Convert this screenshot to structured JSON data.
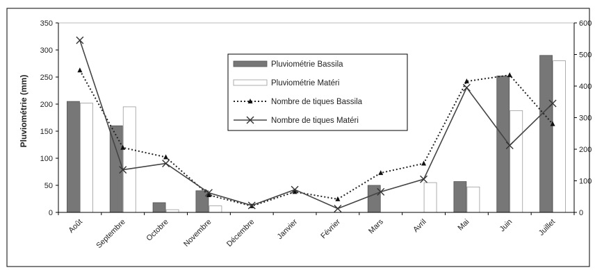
{
  "chart_data": {
    "type": "bar",
    "categories": [
      "Août",
      "Septembre",
      "Octobre",
      "Novembre",
      "Décembre",
      "Janvier",
      "Février",
      "Mars",
      "Avril",
      "Mai",
      "Juin",
      "Juillet"
    ],
    "ylabel": "Pluviométrie (mm)",
    "ylim": [
      0,
      350
    ],
    "yticks": [
      0,
      50,
      100,
      150,
      200,
      250,
      300,
      350
    ],
    "y2lim": [
      0,
      600
    ],
    "y2ticks": [
      0,
      100,
      200,
      300,
      400,
      500,
      600
    ],
    "legend_position": "center",
    "series": [
      {
        "name": "Pluviométrie Bassila",
        "kind": "bar",
        "axis": "left",
        "color": "#777777",
        "values": [
          205,
          160,
          18,
          40,
          null,
          null,
          null,
          50,
          null,
          57,
          252,
          290
        ]
      },
      {
        "name": "Pluviométrie Matéri",
        "kind": "bar",
        "axis": "left",
        "color": "#ffffff",
        "values": [
          202,
          195,
          5,
          12,
          null,
          null,
          null,
          null,
          55,
          47,
          188,
          280
        ]
      },
      {
        "name": "Nombre de tiques Bassila",
        "kind": "line",
        "axis": "right",
        "style": "dotted",
        "marker": "triangle",
        "color": "#222222",
        "values": [
          450,
          205,
          175,
          55,
          20,
          65,
          42,
          125,
          155,
          415,
          435,
          280
        ]
      },
      {
        "name": "Nombre de tiques Matéri",
        "kind": "line",
        "axis": "right",
        "style": "solid",
        "marker": "x",
        "color": "#444444",
        "values": [
          545,
          135,
          155,
          62,
          22,
          72,
          12,
          65,
          105,
          395,
          212,
          345
        ]
      }
    ]
  }
}
